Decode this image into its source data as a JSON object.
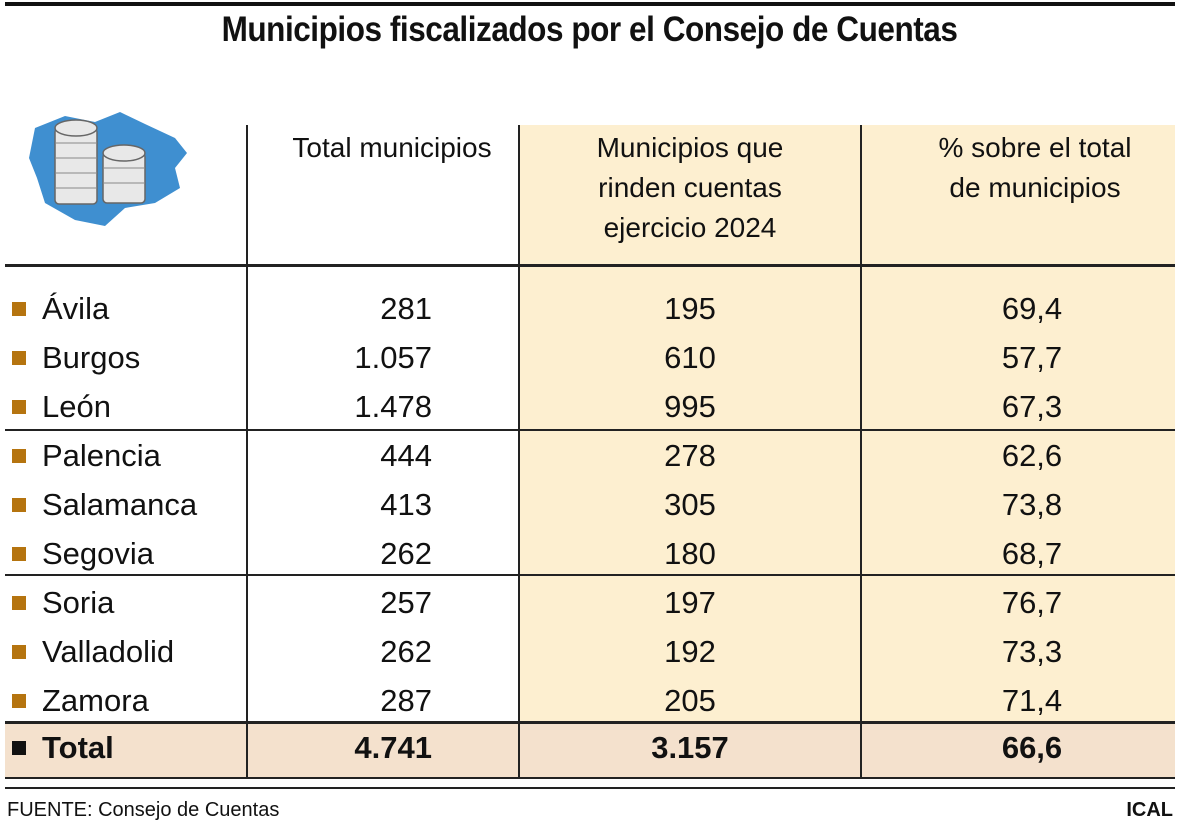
{
  "title": "Municipios fiscalizados por el Consejo de Cuentas",
  "table": {
    "header": [
      "Total municipios",
      "Municipios que rinden cuentas ejercicio 2024",
      "% sobre el total de municipios"
    ],
    "rows": [
      [
        "Ávila",
        "281",
        "195",
        "69,4"
      ],
      [
        "Burgos",
        "1.057",
        "610",
        "57,7"
      ],
      [
        "León",
        "1.478",
        "995",
        "67,3"
      ],
      [
        "Palencia",
        "444",
        "278",
        "62,6"
      ],
      [
        "Salamanca",
        "413",
        "305",
        "73,8"
      ],
      [
        "Segovia",
        "262",
        "180",
        "68,7"
      ],
      [
        "Soria",
        "257",
        "197",
        "76,7"
      ],
      [
        "Valladolid",
        "262",
        "192",
        "73,3"
      ],
      [
        "Zamora",
        "287",
        "205",
        "71,4"
      ]
    ],
    "total": [
      "Total",
      "4.741",
      "3.157",
      "66,6"
    ]
  },
  "footer": {
    "source": "FUENTE: Consejo de Cuentas",
    "credit": "ICAL"
  }
}
